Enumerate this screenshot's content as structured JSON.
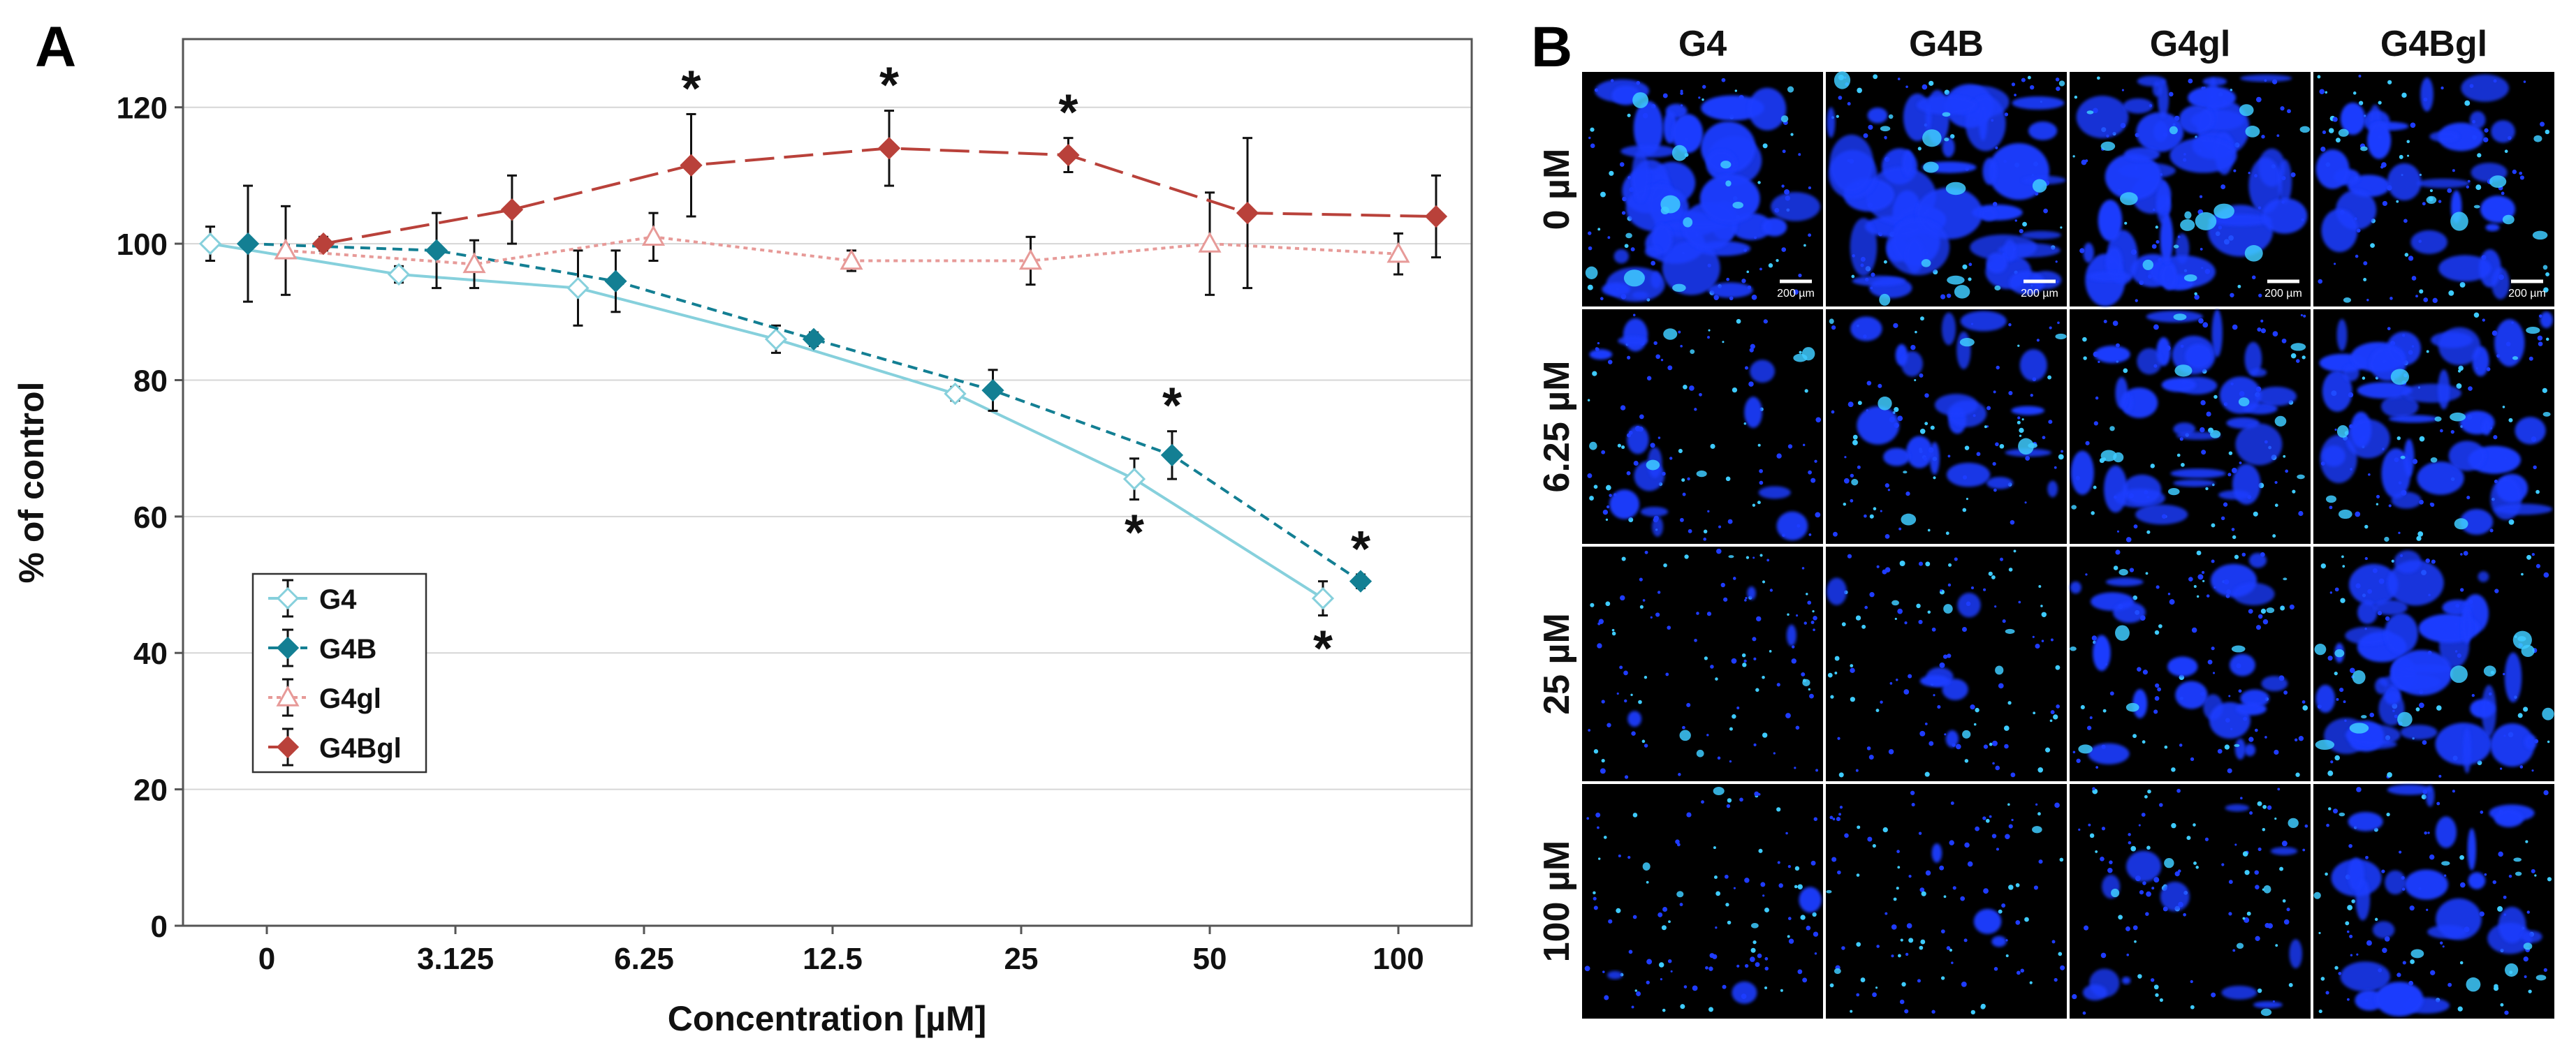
{
  "panel_a": {
    "label": "A"
  },
  "panel_b": {
    "label": "B",
    "columns": [
      "G4",
      "G4B",
      "G4gl",
      "G4Bgl"
    ],
    "rows": [
      "0 µM",
      "6.25 µM",
      "25 µM",
      "100 µM"
    ],
    "scale_bar_label": "200 µm",
    "density": [
      [
        0.8,
        0.9,
        0.85,
        0.55
      ],
      [
        0.28,
        0.4,
        0.62,
        0.7
      ],
      [
        0.06,
        0.12,
        0.42,
        0.72
      ],
      [
        0.07,
        0.07,
        0.22,
        0.48
      ]
    ],
    "colors": {
      "cell": "#1f3cff",
      "highlight": "#3ecbff",
      "background": "#000000"
    }
  },
  "chart_data": {
    "type": "line",
    "xlabel": "Concentration  [µM]",
    "ylabel": "% of control",
    "categories": [
      "0",
      "3.125",
      "6.25",
      "12.5",
      "25",
      "50",
      "100"
    ],
    "ylim": [
      0,
      130
    ],
    "yticks": [
      0,
      20,
      40,
      60,
      80,
      100,
      120
    ],
    "grid": "horizontal",
    "legend_position": "bottom-left",
    "significance_marker": "*",
    "series": [
      {
        "name": "G4",
        "color": "#86d0dc",
        "dash": "solid",
        "marker": "diamond-open",
        "x": [
          -0.3,
          0.7,
          1.65,
          2.7,
          3.65,
          4.6,
          5.6
        ],
        "y": [
          100,
          95.5,
          93.5,
          86,
          78,
          65.5,
          48
        ],
        "err": [
          2.5,
          1.2,
          5.5,
          2,
          1,
          3,
          2.5
        ],
        "sig": [
          "",
          "",
          "",
          "",
          "",
          "below",
          "below"
        ]
      },
      {
        "name": "G4B",
        "color": "#137f93",
        "dash": "dashed",
        "marker": "diamond",
        "x": [
          -0.1,
          0.9,
          1.85,
          2.9,
          3.85,
          4.8,
          5.8
        ],
        "y": [
          100,
          99,
          94.5,
          86,
          78.5,
          69,
          50.5
        ],
        "err": [
          8.5,
          5.5,
          4.5,
          1,
          3,
          3.5,
          1
        ],
        "sig": [
          "",
          "",
          "",
          "",
          "",
          "above",
          "above"
        ]
      },
      {
        "name": "G4gl",
        "color": "#e79a98",
        "dash": "dotted",
        "marker": "triangle-open",
        "x": [
          0.1,
          1.1,
          2.05,
          3.1,
          4.05,
          5.0,
          6.0
        ],
        "y": [
          99,
          97,
          101,
          97.5,
          97.5,
          100,
          98.5
        ],
        "err": [
          6.5,
          3.5,
          3.5,
          1.5,
          3.5,
          7.5,
          3
        ],
        "sig": [
          "",
          "",
          "",
          "",
          "",
          "",
          ""
        ]
      },
      {
        "name": "G4Bgl",
        "color": "#b9413a",
        "dash": "long-dash",
        "marker": "diamond",
        "x": [
          0.3,
          1.3,
          2.25,
          3.3,
          4.25,
          5.2,
          6.2
        ],
        "y": [
          100,
          105,
          111.5,
          114,
          113,
          104.5,
          104
        ],
        "err": [
          1,
          5,
          7.5,
          5.5,
          2.5,
          11,
          6
        ],
        "sig": [
          "",
          "",
          "above",
          "above",
          "above",
          "",
          ""
        ]
      }
    ]
  }
}
